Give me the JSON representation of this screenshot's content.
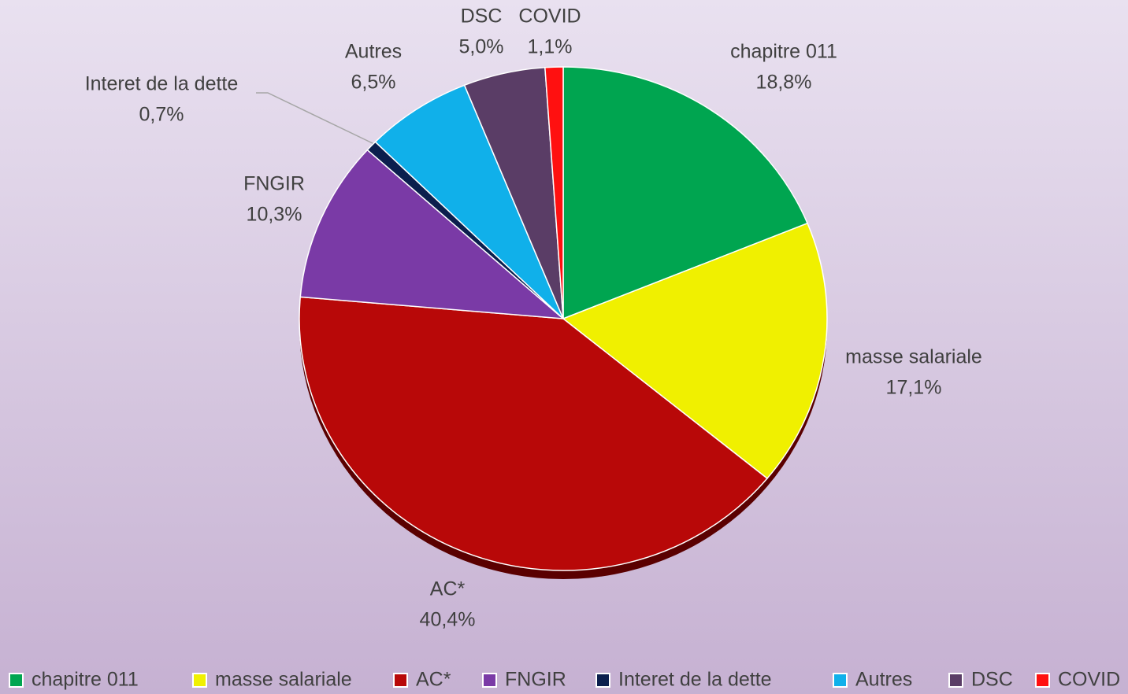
{
  "chart_data": {
    "type": "pie",
    "categories": [
      "chapitre 011",
      "masse salariale",
      "AC*",
      "FNGIR",
      "Interet de la dette",
      "Autres",
      "DSC",
      "COVID"
    ],
    "values": [
      18.8,
      17.1,
      40.4,
      10.3,
      0.7,
      6.5,
      5.0,
      1.1
    ],
    "value_labels": [
      "18,8%",
      "17,1%",
      "40,4%",
      "10,3%",
      "0,7%",
      "6,5%",
      "5,0%",
      "1,1%"
    ],
    "colors": [
      "#00a550",
      "#f0f000",
      "#b80808",
      "#7a3aa6",
      "#0b1f4d",
      "#10b0ea",
      "#5a3d66",
      "#ff1010"
    ],
    "legend": "bottom"
  }
}
